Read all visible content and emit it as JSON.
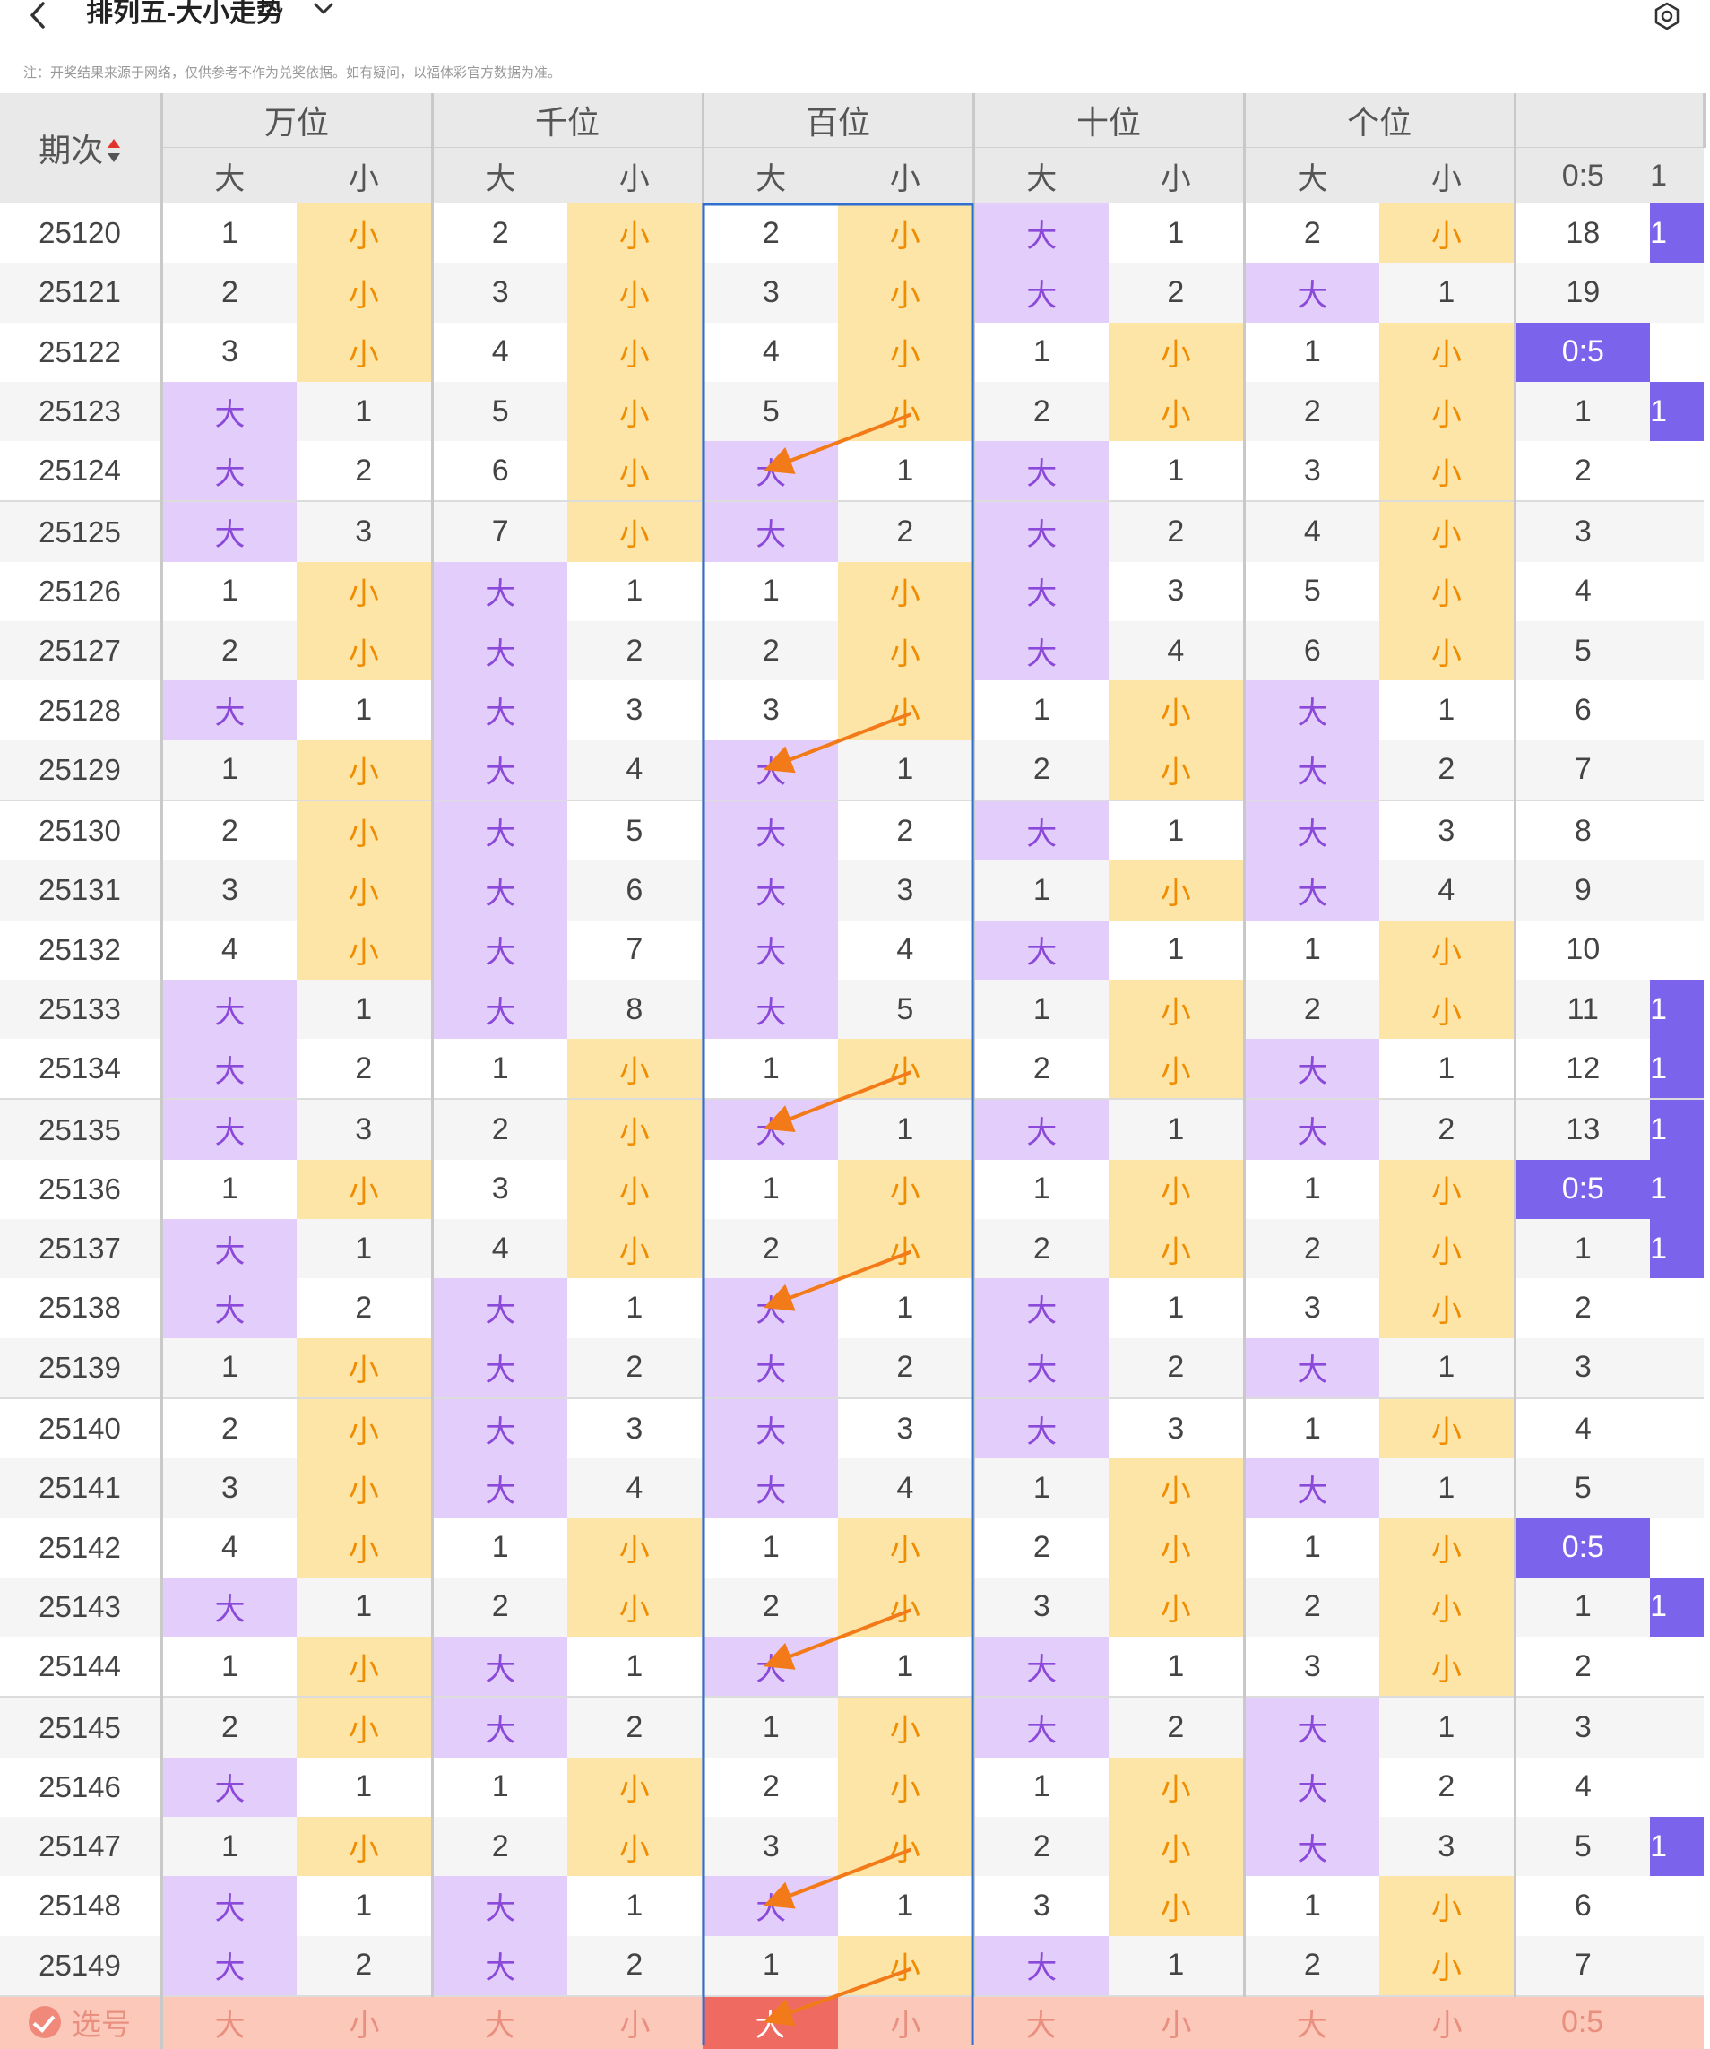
{
  "header": {
    "title": "排列五-大小走势",
    "notice": "注：开奖结果来源于网络，仅供参考不作为兑奖依据。如有疑问，以福体彩官方数据为准。"
  },
  "columns": {
    "period": "期次",
    "positions": [
      "万位",
      "千位",
      "百位",
      "十位",
      "个位"
    ],
    "big": "大",
    "small": "小",
    "ratio": "0:5",
    "extra_partial": "1"
  },
  "rows": [
    {
      "period": "25120",
      "cells": [
        "1",
        "小",
        "2",
        "小",
        "2",
        "小",
        "大",
        "1",
        "2",
        "小"
      ],
      "ratio": "18",
      "extra": "1"
    },
    {
      "period": "25121",
      "cells": [
        "2",
        "小",
        "3",
        "小",
        "3",
        "小",
        "大",
        "2",
        "大",
        "1"
      ],
      "ratio": "19",
      "extra": ""
    },
    {
      "period": "25122",
      "cells": [
        "3",
        "小",
        "4",
        "小",
        "4",
        "小",
        "1",
        "小",
        "1",
        "小"
      ],
      "ratio": "0:5",
      "extra": ""
    },
    {
      "period": "25123",
      "cells": [
        "大",
        "1",
        "5",
        "小",
        "5",
        "小",
        "2",
        "小",
        "2",
        "小"
      ],
      "ratio": "1",
      "extra": "1"
    },
    {
      "period": "25124",
      "cells": [
        "大",
        "2",
        "6",
        "小",
        "大",
        "1",
        "大",
        "1",
        "3",
        "小"
      ],
      "ratio": "2",
      "extra": ""
    },
    {
      "period": "25125",
      "cells": [
        "大",
        "3",
        "7",
        "小",
        "大",
        "2",
        "大",
        "2",
        "4",
        "小"
      ],
      "ratio": "3",
      "extra": ""
    },
    {
      "period": "25126",
      "cells": [
        "1",
        "小",
        "大",
        "1",
        "1",
        "小",
        "大",
        "3",
        "5",
        "小"
      ],
      "ratio": "4",
      "extra": ""
    },
    {
      "period": "25127",
      "cells": [
        "2",
        "小",
        "大",
        "2",
        "2",
        "小",
        "大",
        "4",
        "6",
        "小"
      ],
      "ratio": "5",
      "extra": ""
    },
    {
      "period": "25128",
      "cells": [
        "大",
        "1",
        "大",
        "3",
        "3",
        "小",
        "1",
        "小",
        "大",
        "1"
      ],
      "ratio": "6",
      "extra": ""
    },
    {
      "period": "25129",
      "cells": [
        "1",
        "小",
        "大",
        "4",
        "大",
        "1",
        "2",
        "小",
        "大",
        "2"
      ],
      "ratio": "7",
      "extra": ""
    },
    {
      "period": "25130",
      "cells": [
        "2",
        "小",
        "大",
        "5",
        "大",
        "2",
        "大",
        "1",
        "大",
        "3"
      ],
      "ratio": "8",
      "extra": ""
    },
    {
      "period": "25131",
      "cells": [
        "3",
        "小",
        "大",
        "6",
        "大",
        "3",
        "1",
        "小",
        "大",
        "4"
      ],
      "ratio": "9",
      "extra": ""
    },
    {
      "period": "25132",
      "cells": [
        "4",
        "小",
        "大",
        "7",
        "大",
        "4",
        "大",
        "1",
        "1",
        "小"
      ],
      "ratio": "10",
      "extra": ""
    },
    {
      "period": "25133",
      "cells": [
        "大",
        "1",
        "大",
        "8",
        "大",
        "5",
        "1",
        "小",
        "2",
        "小"
      ],
      "ratio": "11",
      "extra": "1"
    },
    {
      "period": "25134",
      "cells": [
        "大",
        "2",
        "1",
        "小",
        "1",
        "小",
        "2",
        "小",
        "大",
        "1"
      ],
      "ratio": "12",
      "extra": "1"
    },
    {
      "period": "25135",
      "cells": [
        "大",
        "3",
        "2",
        "小",
        "大",
        "1",
        "大",
        "1",
        "大",
        "2"
      ],
      "ratio": "13",
      "extra": "1"
    },
    {
      "period": "25136",
      "cells": [
        "1",
        "小",
        "3",
        "小",
        "1",
        "小",
        "1",
        "小",
        "1",
        "小"
      ],
      "ratio": "0:5",
      "extra": "1"
    },
    {
      "period": "25137",
      "cells": [
        "大",
        "1",
        "4",
        "小",
        "2",
        "小",
        "2",
        "小",
        "2",
        "小"
      ],
      "ratio": "1",
      "extra": "1"
    },
    {
      "period": "25138",
      "cells": [
        "大",
        "2",
        "大",
        "1",
        "大",
        "1",
        "大",
        "1",
        "3",
        "小"
      ],
      "ratio": "2",
      "extra": ""
    },
    {
      "period": "25139",
      "cells": [
        "1",
        "小",
        "大",
        "2",
        "大",
        "2",
        "大",
        "2",
        "大",
        "1"
      ],
      "ratio": "3",
      "extra": ""
    },
    {
      "period": "25140",
      "cells": [
        "2",
        "小",
        "大",
        "3",
        "大",
        "3",
        "大",
        "3",
        "1",
        "小"
      ],
      "ratio": "4",
      "extra": ""
    },
    {
      "period": "25141",
      "cells": [
        "3",
        "小",
        "大",
        "4",
        "大",
        "4",
        "1",
        "小",
        "大",
        "1"
      ],
      "ratio": "5",
      "extra": ""
    },
    {
      "period": "25142",
      "cells": [
        "4",
        "小",
        "1",
        "小",
        "1",
        "小",
        "2",
        "小",
        "1",
        "小"
      ],
      "ratio": "0:5",
      "extra": ""
    },
    {
      "period": "25143",
      "cells": [
        "大",
        "1",
        "2",
        "小",
        "2",
        "小",
        "3",
        "小",
        "2",
        "小"
      ],
      "ratio": "1",
      "extra": "1"
    },
    {
      "period": "25144",
      "cells": [
        "1",
        "小",
        "大",
        "1",
        "大",
        "1",
        "大",
        "1",
        "3",
        "小"
      ],
      "ratio": "2",
      "extra": ""
    },
    {
      "period": "25145",
      "cells": [
        "2",
        "小",
        "大",
        "2",
        "1",
        "小",
        "大",
        "2",
        "大",
        "1"
      ],
      "ratio": "3",
      "extra": ""
    },
    {
      "period": "25146",
      "cells": [
        "大",
        "1",
        "1",
        "小",
        "2",
        "小",
        "1",
        "小",
        "大",
        "2"
      ],
      "ratio": "4",
      "extra": ""
    },
    {
      "period": "25147",
      "cells": [
        "1",
        "小",
        "2",
        "小",
        "3",
        "小",
        "2",
        "小",
        "大",
        "3"
      ],
      "ratio": "5",
      "extra": "1"
    },
    {
      "period": "25148",
      "cells": [
        "大",
        "1",
        "大",
        "1",
        "大",
        "1",
        "3",
        "小",
        "1",
        "小"
      ],
      "ratio": "6",
      "extra": ""
    },
    {
      "period": "25149",
      "cells": [
        "大",
        "2",
        "大",
        "2",
        "1",
        "小",
        "大",
        "1",
        "2",
        "小"
      ],
      "ratio": "7",
      "extra": ""
    }
  ],
  "footer": {
    "select_label": "选号",
    "cells": [
      "大",
      "小",
      "大",
      "小",
      "大",
      "小",
      "大",
      "小",
      "大",
      "小"
    ],
    "ratio": "0:5"
  },
  "colors": {
    "big_bg": "#e3cdfb",
    "small_bg": "#fde5a8",
    "highlight": "#7b63ec",
    "frame": "#2f6fd0",
    "arrow": "#f37a19"
  }
}
